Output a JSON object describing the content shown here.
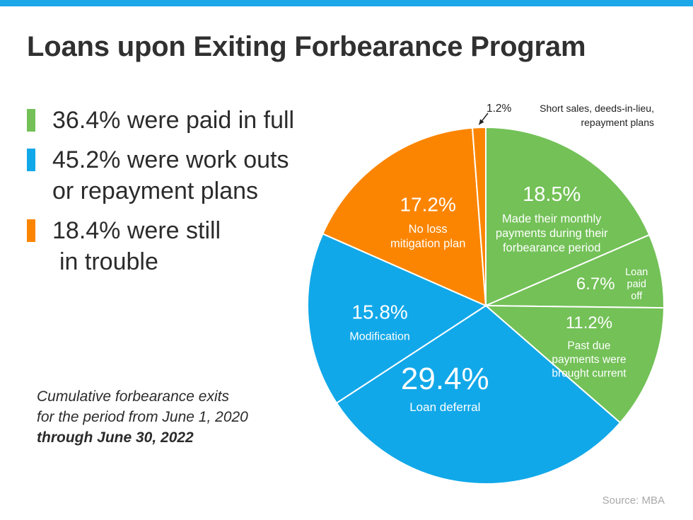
{
  "title": "Loans upon Exiting Forbearance Program",
  "colors": {
    "green": "#73c157",
    "blue": "#11a8e9",
    "orange": "#fb8500",
    "top_bar": "#1ba7e8"
  },
  "legend": [
    {
      "color": "#73c157",
      "lines": [
        "36.4% were paid in full"
      ]
    },
    {
      "color": "#11a8e9",
      "lines": [
        "45.2% were work outs",
        "or repayment plans"
      ]
    },
    {
      "color": "#fb8500",
      "lines": [
        "18.4% were still",
        " in trouble"
      ]
    }
  ],
  "footnote": {
    "line1": "Cumulative forbearance exits",
    "line2": "for the period from June 1, 2020",
    "line3": "through June 30, 2022"
  },
  "source": "Source: MBA",
  "chart_data": {
    "type": "pie",
    "start_angle_deg": 0,
    "direction": "clockwise",
    "slices": [
      {
        "value": 18.5,
        "pct_label": "18.5%",
        "desc": [
          "Made their monthly",
          "payments during their",
          "forbearance period"
        ],
        "color": "#73c157"
      },
      {
        "value": 6.7,
        "pct_label": "6.7%",
        "desc": [
          "Loan",
          "paid",
          "off"
        ],
        "color": "#73c157"
      },
      {
        "value": 11.2,
        "pct_label": "11.2%",
        "desc": [
          "Past due",
          "payments were",
          "brought current"
        ],
        "color": "#73c157"
      },
      {
        "value": 29.4,
        "pct_label": "29.4%",
        "desc": [
          "Loan deferral"
        ],
        "color": "#11a8e9"
      },
      {
        "value": 15.8,
        "pct_label": "15.8%",
        "desc": [
          "Modification"
        ],
        "color": "#11a8e9"
      },
      {
        "value": 17.2,
        "pct_label": "17.2%",
        "desc": [
          "No loss",
          "mitigation plan"
        ],
        "color": "#fb8500"
      },
      {
        "value": 1.2,
        "pct_label": "1.2%",
        "desc": [
          "Short sales, deeds-in-lieu,",
          "repayment plans"
        ],
        "color": "#fb8500"
      }
    ]
  }
}
